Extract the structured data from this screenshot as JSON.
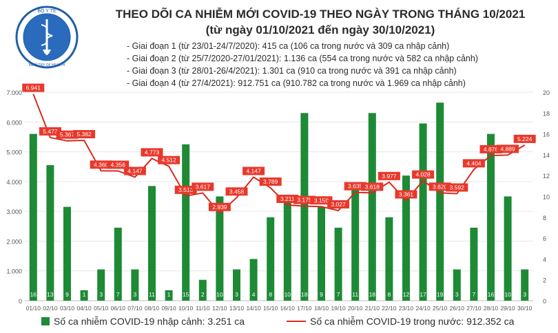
{
  "header": {
    "logo_text_top": "BỘ Y TẾ",
    "logo_text_bottom": "MINISTRY OF HEALTH",
    "title_line1": "THEO DÕI CA NHIỄM MỚI COVID-19 THEO NGÀY TRONG THÁNG 10/2021",
    "title_line2": "(từ ngày 01/10/2021 đến ngày 30/10/2021)"
  },
  "phases": [
    "- Giai đoạn 1 (từ 23/01-24/7/2020): 415 ca (106 ca trong nước và 309 ca nhập cảnh)",
    "- Giai đoạn 2 (từ 25/7/2020-27/01/2021): 1.136 ca (554 ca trong nước và 582 ca nhập cảnh)",
    "- Giai đoạn 3 (từ 28/01-26/4/2021): 1.301 ca (910 ca trong nước và 391 ca nhập cảnh)",
    "- Giai đoạn 4 (từ 27/4/2021): 912.751 ca (910.782 ca trong nước và 1.969 ca nhập cảnh)"
  ],
  "legend": {
    "bars_label": "Số ca nhiễm COVID-19 nhập cảnh: 3.251 ca",
    "line_label": "Số ca nhiễm COVID-19 trong nước: 912.352 ca"
  },
  "colors": {
    "bar": "#1e8a36",
    "bar_label": "#ffffff",
    "line": "#d52b1e",
    "line_label_bg": "#e8382b",
    "line_label_text": "#ffffff",
    "axis_text": "#555555",
    "grid": "#e6e6e6"
  },
  "chart_data": {
    "type": "bar+line",
    "categories": [
      "01/10",
      "02/10",
      "03/10",
      "04/10",
      "05/10",
      "06/10",
      "07/10",
      "08/10",
      "09/10",
      "10/10",
      "11/10",
      "12/10",
      "13/10",
      "14/10",
      "15/10",
      "16/10",
      "17/10",
      "18/10",
      "19/10",
      "20/10",
      "21/10",
      "22/10",
      "23/10",
      "24/10",
      "25/10",
      "26/10",
      "27/10",
      "28/10",
      "29/10",
      "30/10"
    ],
    "left_axis": {
      "ylim": [
        0,
        7000
      ],
      "ticks": [
        "0",
        "1.000",
        "2.000",
        "3.000",
        "4.000",
        "5.000",
        "6.000",
        "7.000"
      ]
    },
    "right_axis": {
      "ylim": [
        0,
        20
      ],
      "ticks": [
        "0",
        "2",
        "4",
        "6",
        "8",
        "10",
        "12",
        "14",
        "16",
        "18",
        "20"
      ]
    },
    "series": [
      {
        "axis": "right",
        "kind": "bar",
        "values": [
          16,
          13,
          9,
          1,
          3,
          7,
          3,
          11,
          1,
          15,
          2,
          10,
          3,
          4,
          8,
          10,
          18,
          9,
          7,
          11,
          18,
          8,
          12,
          17,
          19,
          3,
          7,
          16,
          10,
          3
        ],
        "labels": [
          "16",
          "13",
          "9",
          "1",
          "3",
          "7",
          "3",
          "11",
          "1",
          "15",
          "2",
          "10",
          "3",
          "4",
          "8",
          "10",
          "18",
          "9",
          "7",
          "11",
          "18",
          "8",
          "12",
          "17",
          "19",
          "3",
          "7",
          "16",
          "10",
          "3"
        ]
      },
      {
        "axis": "left",
        "kind": "line",
        "values": [
          6941,
          5477,
          5367,
          5382,
          4360,
          4356,
          4147,
          4773,
          4512,
          3513,
          3617,
          2939,
          3458,
          4147,
          3789,
          3211,
          3175,
          3159,
          3027,
          3635,
          3618,
          3977,
          3361,
          4028,
          3620,
          3592,
          4404,
          4876,
          4889,
          5224
        ],
        "labels": [
          "6.941",
          "5.477",
          "5.367",
          "5.382",
          "4.360",
          "4.356",
          "4.147",
          "4.773",
          "4.512",
          "3.513",
          "3.617",
          "2.939",
          "3.458",
          "4.147",
          "3.789",
          "3.211",
          "3.175",
          "3.159",
          "3.027",
          "3.635",
          "3.618",
          "3.977",
          "3.361",
          "4.028",
          "3.620",
          "3.592",
          "4.404",
          "4.876",
          "4.889",
          "5.224"
        ]
      }
    ],
    "grid": true,
    "legend_position": "bottom"
  }
}
